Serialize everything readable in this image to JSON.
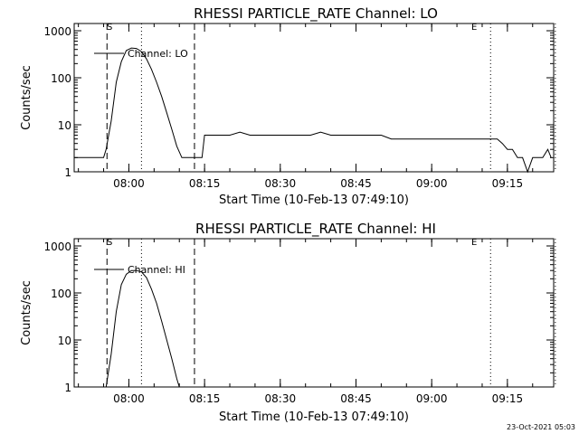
{
  "footer": {
    "stamp": "23-Oct-2021 05:03"
  },
  "chart_data": [
    {
      "type": "line",
      "title": "RHESSI PARTICLE_RATE Channel: LO",
      "xlabel": "Start Time (10-Feb-13 07:49:10)",
      "ylabel": "Counts/sec",
      "yscale": "log",
      "ylim": [
        1,
        1000
      ],
      "xlim_minutes_after_start": [
        0,
        95
      ],
      "xtick_labels": [
        "08:00",
        "08:15",
        "08:30",
        "08:45",
        "09:00",
        "09:15"
      ],
      "ytick_labels": [
        "1",
        "10",
        "100",
        "1000"
      ],
      "marker_labels": {
        "start": "S",
        "end": "E"
      },
      "legend": {
        "position": "top-left",
        "label": "Channel: LO"
      },
      "series": [
        {
          "name": "Channel: LO",
          "x": [
            "07:49:10",
            "07:51:00",
            "07:53:00",
            "07:55:00",
            "07:55:30",
            "07:56:30",
            "07:57:30",
            "07:58:30",
            "07:59:30",
            "08:00:30",
            "08:01:30",
            "08:02:30",
            "08:03:30",
            "08:04:30",
            "08:05:30",
            "08:06:30",
            "08:07:30",
            "08:08:30",
            "08:09:30",
            "08:10:30",
            "08:11:30",
            "08:12:30",
            "08:13:00",
            "08:14:30",
            "08:15:00",
            "08:16:00",
            "08:18:00",
            "08:20:00",
            "08:22:00",
            "08:24:00",
            "08:26:00",
            "08:28:00",
            "08:30:00",
            "08:32:00",
            "08:34:00",
            "08:36:00",
            "08:38:00",
            "08:40:00",
            "08:42:00",
            "08:44:00",
            "08:46:00",
            "08:48:00",
            "08:50:00",
            "08:52:00",
            "08:54:00",
            "08:56:00",
            "08:58:00",
            "09:00:00",
            "09:02:00",
            "09:04:00",
            "09:06:00",
            "09:08:00",
            "09:10:00",
            "09:11:30",
            "09:13:00",
            "09:14:00",
            "09:15:00",
            "09:16:00",
            "09:17:00",
            "09:18:00",
            "09:19:00",
            "09:20:00",
            "09:21:00",
            "09:22:00",
            "09:23:00",
            "09:23:40"
          ],
          "y": [
            2,
            2,
            2,
            2,
            3,
            12,
            80,
            220,
            380,
            430,
            420,
            360,
            250,
            150,
            80,
            40,
            18,
            8,
            3.5,
            2,
            2,
            2,
            2,
            2,
            6,
            6,
            6,
            6,
            7,
            6,
            6,
            6,
            6,
            6,
            6,
            6,
            7,
            6,
            6,
            6,
            6,
            6,
            6,
            5,
            5,
            5,
            5,
            5,
            5,
            5,
            5,
            5,
            5,
            5,
            5,
            4,
            3,
            3,
            2,
            2,
            1,
            2,
            2,
            2,
            3,
            2
          ]
        }
      ]
    },
    {
      "type": "line",
      "title": "RHESSI PARTICLE_RATE Channel: HI",
      "xlabel": "Start Time (10-Feb-13 07:49:10)",
      "ylabel": "Counts/sec",
      "yscale": "log",
      "ylim": [
        1,
        1000
      ],
      "xlim_minutes_after_start": [
        0,
        95
      ],
      "xtick_labels": [
        "08:00",
        "08:15",
        "08:30",
        "08:45",
        "09:00",
        "09:15"
      ],
      "ytick_labels": [
        "1",
        "10",
        "100",
        "1000"
      ],
      "marker_labels": {
        "start": "S",
        "end": "E"
      },
      "legend": {
        "position": "top-left",
        "label": "Channel: HI"
      },
      "series": [
        {
          "name": "Channel: HI",
          "x": [
            "07:55:30",
            "07:56:30",
            "07:57:30",
            "07:58:30",
            "07:59:30",
            "08:00:30",
            "08:01:30",
            "08:02:30",
            "08:03:30",
            "08:04:30",
            "08:05:30",
            "08:06:30",
            "08:07:30",
            "08:08:30",
            "08:09:30",
            "08:10:00"
          ],
          "y": [
            1,
            5,
            40,
            150,
            250,
            300,
            300,
            280,
            210,
            120,
            60,
            25,
            10,
            4,
            1.5,
            1
          ]
        }
      ]
    }
  ]
}
